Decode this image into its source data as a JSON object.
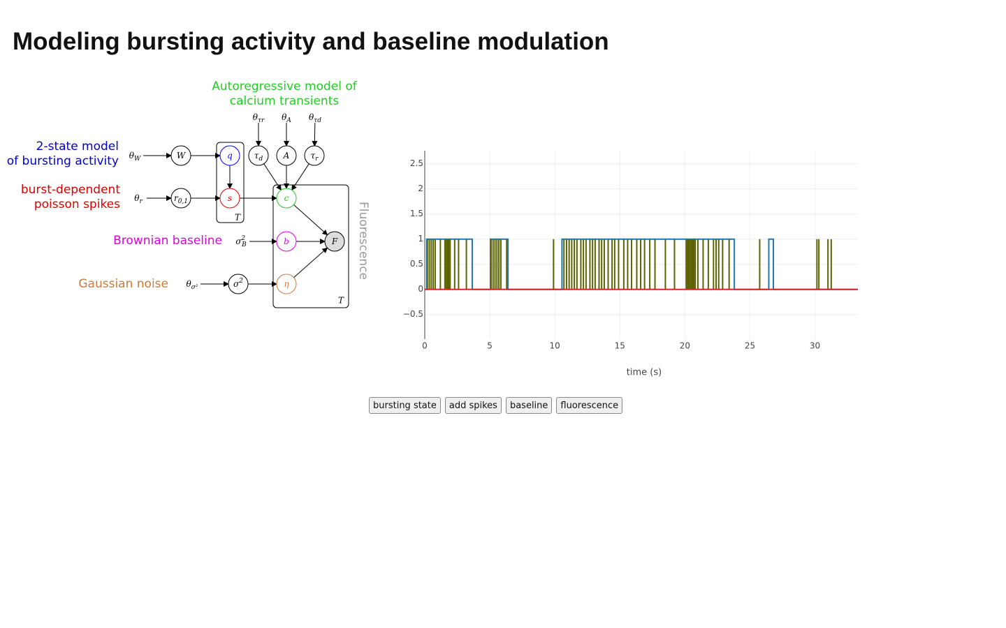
{
  "header": {
    "title": "Modeling bursting activity and baseline modulation"
  },
  "diagram": {
    "annotations": [
      {
        "lines": [
          "Autoregressive model of",
          "calcium transients"
        ],
        "color": "#22cc22"
      },
      {
        "lines": [
          "2-state model",
          "of bursting activity"
        ],
        "color": "#0000cc"
      },
      {
        "lines": [
          "burst-dependent",
          "poisson spikes"
        ],
        "color": "#dd0000"
      },
      {
        "lines": [
          "Brownian baseline"
        ],
        "color": "#dd00dd"
      },
      {
        "lines": [
          "Gaussian noise"
        ],
        "color": "#cc7a3d"
      },
      {
        "lines": [
          "Fluorescence"
        ],
        "color": "#999999"
      }
    ],
    "nodes": [
      {
        "label": "W"
      },
      {
        "label": "q",
        "color": "#0000ff"
      },
      {
        "label": "s",
        "color": "#ee0000"
      },
      {
        "label": "r",
        "sub": "0,1"
      },
      {
        "label": "τ",
        "sub": "d"
      },
      {
        "label": "A"
      },
      {
        "label": "τ",
        "sub": "r"
      },
      {
        "label": "c",
        "color": "#22cc22"
      },
      {
        "label": "b",
        "color": "#dd00dd"
      },
      {
        "label": "F",
        "fill": "#dddddd"
      },
      {
        "label": "η",
        "color": "#cc7a3d"
      },
      {
        "label": "σ",
        "sup": "2"
      }
    ],
    "params": [
      {
        "label": "θ",
        "sub": "W"
      },
      {
        "label": "θ",
        "sub": "r"
      },
      {
        "label": "θ",
        "sub": "τr"
      },
      {
        "label": "θ",
        "sub": "A"
      },
      {
        "label": "θ",
        "sub": "τd"
      },
      {
        "label": "σ",
        "sup": "2",
        "sub": "B"
      },
      {
        "label": "θ",
        "sub": "σ²"
      }
    ],
    "plate_labels": [
      "T",
      "T"
    ]
  },
  "chart_data": {
    "type": "line",
    "xlabel": "time (s)",
    "xlim": [
      0,
      33.3
    ],
    "xticks": [
      0,
      5,
      10,
      15,
      20,
      25,
      30
    ],
    "ylim": [
      -0.99,
      2.76
    ],
    "yticks": [
      {
        "value": -0.5,
        "label": "−0.5"
      },
      0,
      0.5,
      1,
      1.5,
      2,
      2.5
    ],
    "grid": true,
    "series": [
      {
        "color": "#1f77b4",
        "style": "line",
        "x": [
          0,
          0.15,
          0.15,
          3.65,
          3.65,
          5.05,
          5.05,
          6.4,
          6.4,
          10.55,
          10.55,
          23.8,
          23.8,
          26.45,
          26.45,
          26.8,
          26.8,
          33.3
        ],
        "values": [
          0,
          0,
          1,
          1,
          0,
          0,
          1,
          1,
          0,
          0,
          1,
          1,
          0,
          0,
          1,
          1,
          0,
          0
        ]
      },
      {
        "color": "#5c6300",
        "style": "stem",
        "x": [
          0.2,
          0.35,
          0.5,
          0.65,
          0.8,
          1.2,
          1.55,
          1.65,
          1.75,
          1.85,
          1.95,
          2.3,
          2.6,
          3.2,
          5.1,
          5.25,
          5.4,
          5.55,
          5.7,
          5.85,
          6.3,
          9.9,
          10.7,
          10.9,
          11.1,
          11.3,
          11.5,
          11.7,
          12.0,
          12.2,
          12.4,
          12.7,
          12.9,
          13.1,
          13.4,
          13.6,
          13.8,
          14.1,
          14.4,
          14.6,
          14.9,
          15.3,
          15.6,
          15.9,
          16.3,
          16.6,
          16.9,
          17.3,
          17.7,
          18.5,
          19.2,
          20.1,
          20.2,
          20.3,
          20.4,
          20.5,
          20.6,
          20.7,
          20.8,
          21.0,
          21.4,
          21.8,
          22.2,
          22.4,
          22.6,
          22.9,
          23.4,
          25.75,
          30.15,
          30.3,
          31.0,
          31.25
        ],
        "values": [
          1,
          1,
          1,
          1,
          1,
          1,
          1,
          1,
          1,
          1,
          1,
          1,
          1,
          1,
          1,
          1,
          1,
          1,
          1,
          1,
          1,
          1,
          1,
          1,
          1,
          1,
          1,
          1,
          1,
          1,
          1,
          1,
          1,
          1,
          1,
          1,
          1,
          1,
          1,
          1,
          1,
          1,
          1,
          1,
          1,
          1,
          1,
          1,
          1,
          1,
          1,
          1,
          1,
          1,
          1,
          1,
          1,
          1,
          1,
          1,
          1,
          1,
          1,
          1,
          1,
          1,
          1,
          1,
          1,
          1,
          1,
          1
        ]
      },
      {
        "color": "#d62728",
        "style": "line",
        "x": [
          0,
          33.3
        ],
        "values": [
          0,
          0
        ]
      }
    ]
  },
  "buttons": [
    "bursting state",
    "add spikes",
    "baseline",
    "fluorescence"
  ]
}
